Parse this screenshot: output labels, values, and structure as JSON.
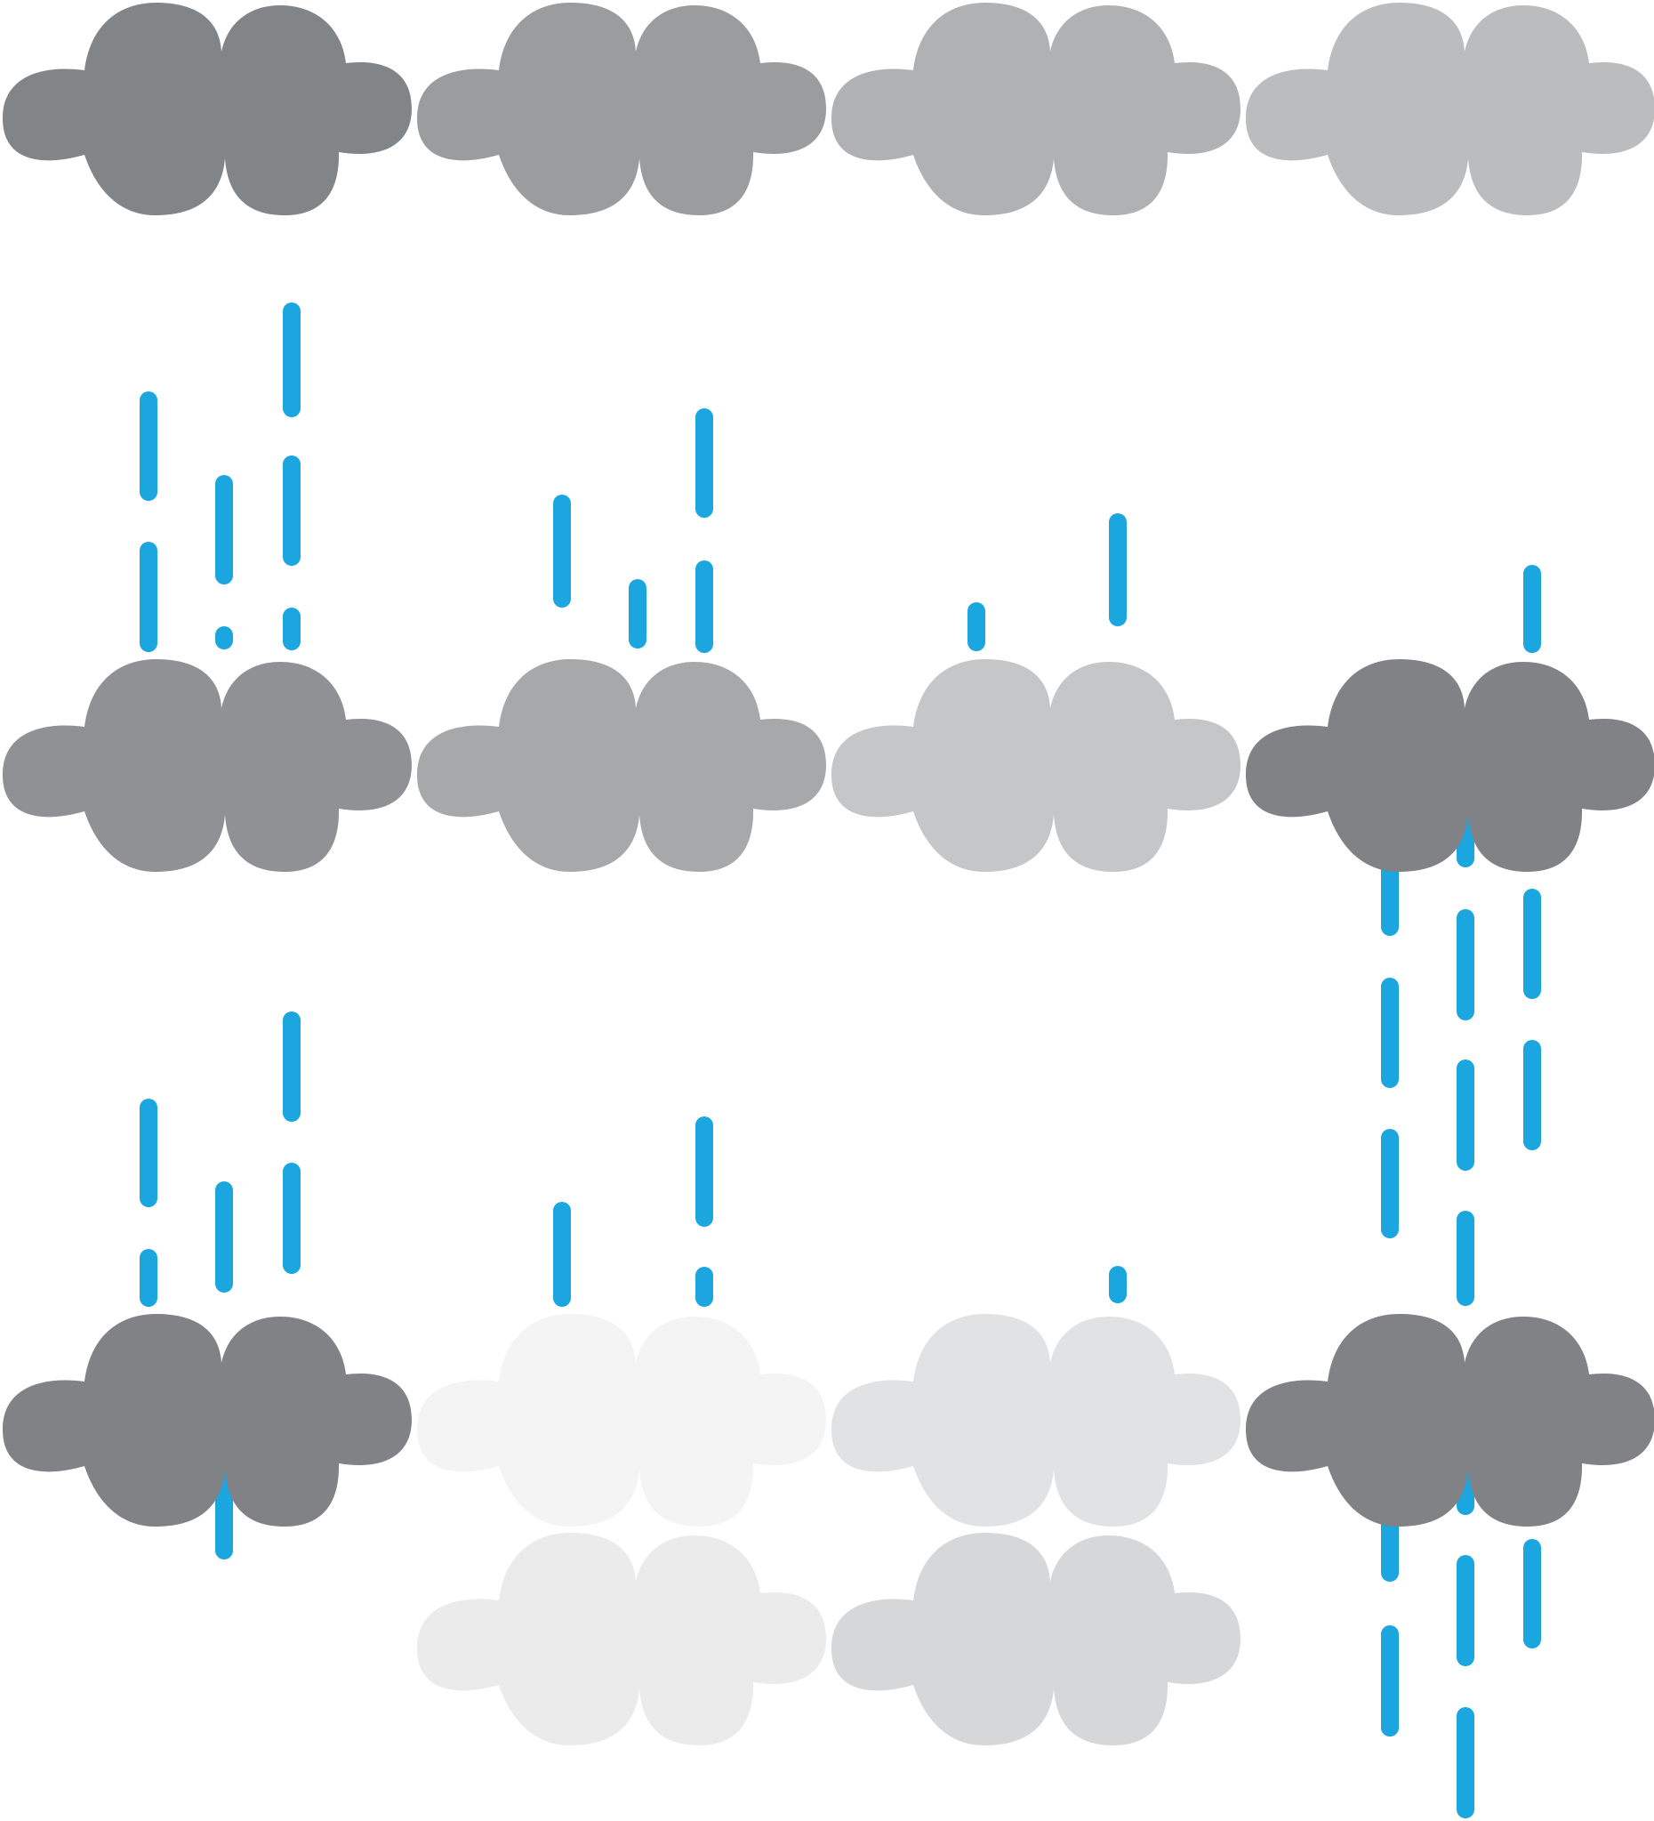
{
  "colors": {
    "background": "#ffffff",
    "rain": "#1ca6e0"
  },
  "clouds": [
    {
      "name": "cloud-icon-row1-col1",
      "color": "#828588"
    },
    {
      "name": "cloud-icon-row1-col2",
      "color": "#9b9c9e"
    },
    {
      "name": "cloud-icon-row1-col3",
      "color": "#b0b1b3"
    },
    {
      "name": "cloud-icon-row1-col4",
      "color": "#bbbcbe"
    },
    {
      "name": "cloud-icon-row2-col1",
      "color": "#8f9194"
    },
    {
      "name": "cloud-icon-row2-col2",
      "color": "#a7a8aa"
    },
    {
      "name": "cloud-icon-row2-col3",
      "color": "#c5c6c8"
    },
    {
      "name": "cloud-icon-row2-col4",
      "color": "#808285"
    },
    {
      "name": "cloud-icon-row3-col1",
      "color": "#808285"
    },
    {
      "name": "cloud-icon-row3-col2",
      "color": "#f4f4f4"
    },
    {
      "name": "cloud-icon-row3-col3",
      "color": "#e1e2e3"
    },
    {
      "name": "cloud-icon-row3-col4",
      "color": "#808285"
    },
    {
      "name": "cloud-icon-row4-col2",
      "color": "#ebebeb"
    },
    {
      "name": "cloud-icon-row4-col3",
      "color": "#d6d7d9"
    }
  ],
  "raindrop_icon": "raindrop-icon"
}
